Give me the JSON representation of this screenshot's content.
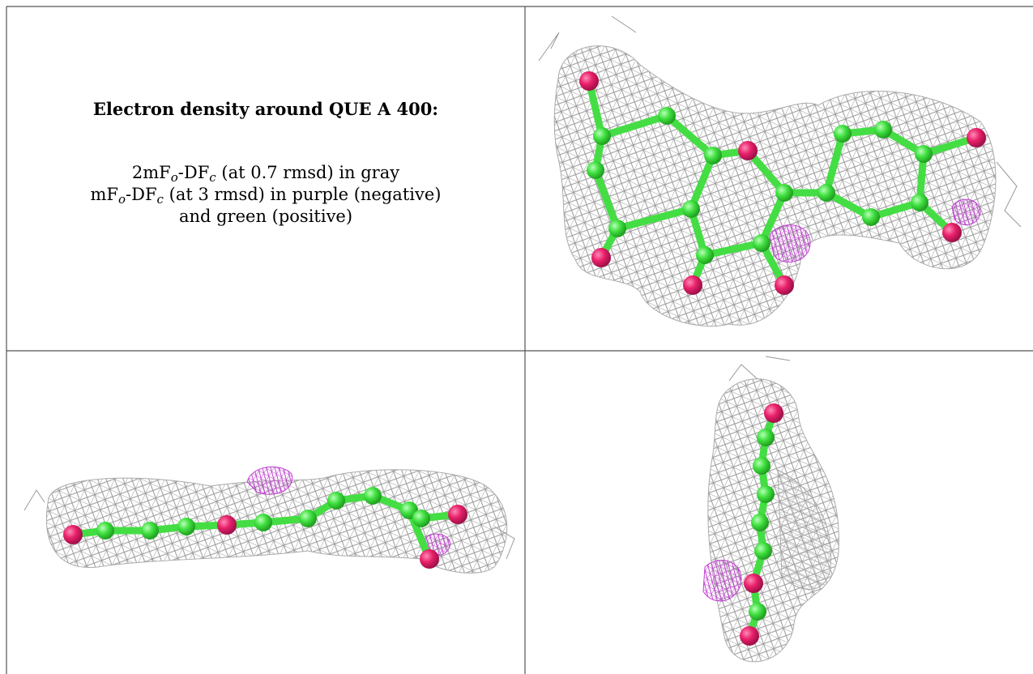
{
  "figure": {
    "title": "Electron density around QUE A 400:",
    "legend": [
      [
        "2mF",
        "o",
        "-DF",
        "c",
        " (at 0.7 rmsd) in gray"
      ],
      [
        "mF",
        "o",
        "-DF",
        "c",
        " (at 3 rmsd) in purple (negative)"
      ],
      [
        "and green (positive)"
      ]
    ]
  }
}
